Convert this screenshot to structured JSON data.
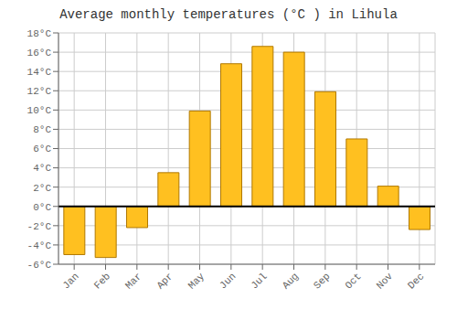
{
  "chart_data": {
    "type": "bar",
    "title": "Average monthly temperatures (°C ) in Lihula",
    "categories": [
      "Jan",
      "Feb",
      "Mar",
      "Apr",
      "May",
      "Jun",
      "Jul",
      "Aug",
      "Sep",
      "Oct",
      "Nov",
      "Dec"
    ],
    "values": [
      -5.0,
      -5.3,
      -2.2,
      3.5,
      9.9,
      14.8,
      16.6,
      16.0,
      11.9,
      7.0,
      2.1,
      -2.4
    ],
    "color": "#FFC020",
    "ylim": [
      -6,
      18
    ],
    "yticks": [
      {
        "value": -6,
        "label": "-6°C"
      },
      {
        "value": -4,
        "label": "-4°C"
      },
      {
        "value": -2,
        "label": "-2°C"
      },
      {
        "value": 0,
        "label": "0°C"
      },
      {
        "value": 2,
        "label": "2°C"
      },
      {
        "value": 4,
        "label": "4°C"
      },
      {
        "value": 6,
        "label": "6°C"
      },
      {
        "value": 8,
        "label": "8°C"
      },
      {
        "value": 10,
        "label": "10°C"
      },
      {
        "value": 12,
        "label": "12°C"
      },
      {
        "value": 14,
        "label": "14°C"
      },
      {
        "value": 16,
        "label": "16°C"
      },
      {
        "value": 18,
        "label": "18°C"
      }
    ],
    "grid": true
  }
}
